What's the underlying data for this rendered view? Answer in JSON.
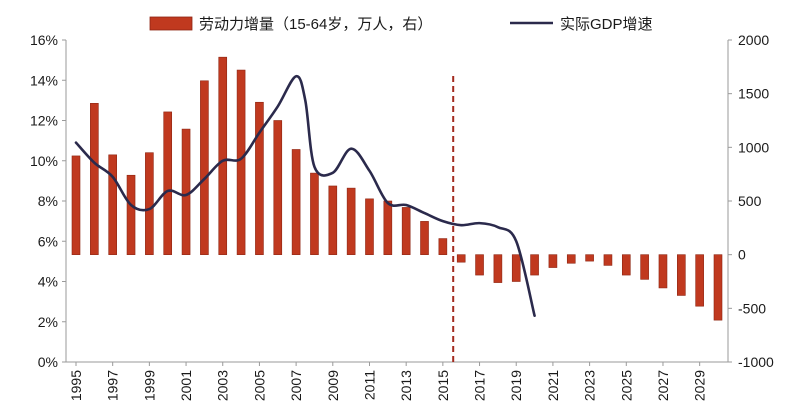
{
  "chart_data": {
    "type": "bar+line",
    "legend": {
      "bar_label": "劳动力增量（15-64岁，万人，右）",
      "line_label": "实际GDP增速",
      "placement": "top"
    },
    "x_tick_labels": [
      "1995",
      "1997",
      "1999",
      "2001",
      "2003",
      "2005",
      "2007",
      "2009",
      "2011",
      "2013",
      "2015",
      "2017",
      "2019",
      "2021",
      "2023",
      "2025",
      "2027",
      "2029"
    ],
    "left_axis": {
      "ticks": [
        "0%",
        "2%",
        "4%",
        "6%",
        "8%",
        "10%",
        "12%",
        "14%",
        "16%"
      ],
      "ylim": [
        0,
        16
      ],
      "unit": "%"
    },
    "right_axis": {
      "ticks": [
        "-1000",
        "-500",
        "0",
        "500",
        "1000",
        "1500",
        "2000"
      ],
      "ylim": [
        -1000,
        2000
      ]
    },
    "bars": {
      "name": "劳动力增量（15-64岁，万人，右）",
      "x": [
        1995,
        1996,
        1997,
        1998,
        1999,
        2000,
        2001,
        2002,
        2003,
        2004,
        2005,
        2006,
        2007,
        2008,
        2009,
        2010,
        2011,
        2012,
        2013,
        2014,
        2015,
        2016,
        2017,
        2018,
        2019,
        2020,
        2021,
        2022,
        2023,
        2024,
        2025,
        2026,
        2027,
        2028,
        2029,
        2030
      ],
      "values": [
        920,
        1410,
        930,
        740,
        950,
        1330,
        1170,
        1620,
        1840,
        1720,
        1420,
        1250,
        980,
        760,
        640,
        620,
        520,
        500,
        440,
        310,
        150,
        -70,
        -190,
        -260,
        -250,
        -190,
        -120,
        -80,
        -60,
        -100,
        -190,
        -230,
        -310,
        -380,
        -480,
        -610
      ]
    },
    "line": {
      "name": "实际GDP增速",
      "x": [
        1995,
        1996,
        1997,
        1998,
        1999,
        2000,
        2001,
        2002,
        2003,
        2004,
        2005,
        2006,
        2007,
        2007.5,
        2008,
        2009,
        2010,
        2011,
        2012,
        2013,
        2014,
        2015,
        2016,
        2017,
        2018,
        2019,
        2020
      ],
      "values": [
        10.9,
        9.9,
        9.2,
        7.8,
        7.6,
        8.5,
        8.3,
        9.1,
        10.0,
        10.1,
        11.4,
        12.7,
        14.2,
        13.0,
        9.7,
        9.4,
        10.6,
        9.5,
        7.9,
        7.8,
        7.4,
        7.0,
        6.8,
        6.9,
        6.7,
        6.0,
        2.3
      ]
    },
    "marker_vline_x": 2016,
    "colors": {
      "bar": "#C0391F",
      "bar_edge": "#8E2512",
      "line": "#2B2A4C",
      "vline": "#A32A1E",
      "axis": "#9a9a9a"
    },
    "grid": false
  }
}
